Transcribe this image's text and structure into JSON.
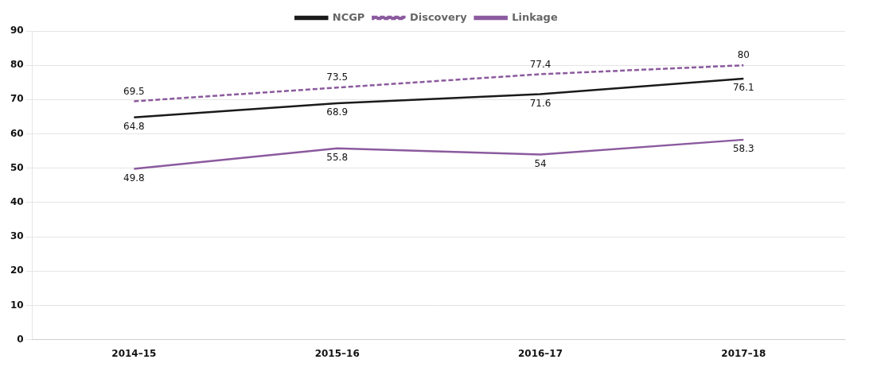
{
  "chart_data": {
    "type": "line",
    "categories": [
      "2014–15",
      "2015–16",
      "2016–17",
      "2017–18"
    ],
    "series": [
      {
        "name": "NCGP",
        "color": "#1a1a1a",
        "line_style": "solid",
        "values": [
          64.8,
          68.9,
          71.6,
          76.1
        ]
      },
      {
        "name": "Discovery",
        "color": "#8B5A9E",
        "line_style": "dashed",
        "values": [
          69.5,
          73.5,
          77.4,
          80.0
        ]
      },
      {
        "name": "Linkage",
        "color": "#8B5A9E",
        "line_style": "solid",
        "values": [
          49.8,
          55.8,
          54.0,
          58.3
        ]
      }
    ],
    "ylim": [
      0,
      90
    ],
    "yticks": [
      0,
      10,
      20,
      30,
      40,
      50,
      60,
      70,
      80,
      90
    ],
    "grid": true,
    "legend": "top",
    "data_labels": true
  }
}
